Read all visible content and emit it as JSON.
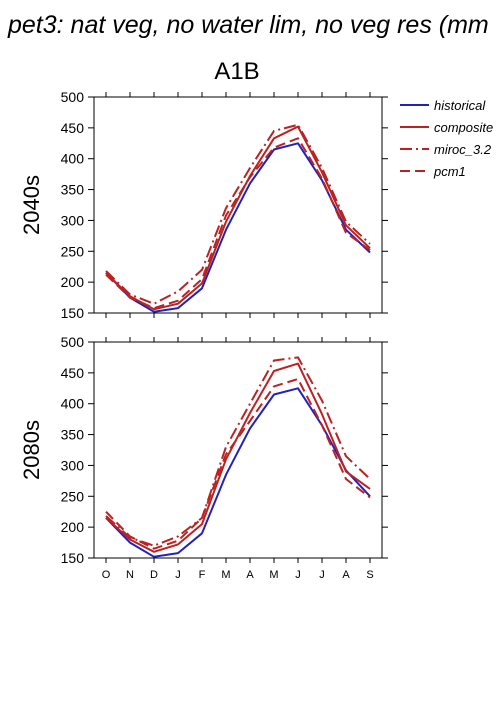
{
  "title": "pet3: nat veg, no water lim, no veg res (mm",
  "scenario": "A1B",
  "colors": {
    "historical": "#2222bb",
    "future": "#bb2222"
  },
  "legend": [
    {
      "name": "historical",
      "color": "#2222bb",
      "dash": "solid"
    },
    {
      "name": "composite",
      "color": "#bb2222",
      "dash": "solid"
    },
    {
      "name": "miroc_3.2",
      "color": "#bb2222",
      "dash": "dashdot"
    },
    {
      "name": "pcm1",
      "color": "#bb2222",
      "dash": "dashed"
    }
  ],
  "chart_data": [
    {
      "type": "line",
      "row_label": "2040s",
      "categories": [
        "O",
        "N",
        "D",
        "J",
        "F",
        "M",
        "A",
        "M",
        "J",
        "J",
        "A",
        "S"
      ],
      "ylim": [
        150,
        500
      ],
      "yticks": [
        150,
        200,
        250,
        300,
        350,
        400,
        450,
        500
      ],
      "series": [
        {
          "name": "historical",
          "values": [
            215,
            175,
            152,
            158,
            190,
            285,
            360,
            415,
            425,
            365,
            285,
            248
          ]
        },
        {
          "name": "composite",
          "values": [
            215,
            177,
            156,
            165,
            198,
            298,
            372,
            433,
            452,
            378,
            292,
            255
          ]
        },
        {
          "name": "miroc_3.2",
          "values": [
            218,
            180,
            165,
            185,
            220,
            320,
            385,
            445,
            455,
            385,
            298,
            262
          ]
        },
        {
          "name": "pcm1",
          "values": [
            212,
            175,
            158,
            170,
            205,
            308,
            370,
            418,
            433,
            368,
            280,
            252
          ]
        }
      ]
    },
    {
      "type": "line",
      "row_label": "2080s",
      "categories": [
        "O",
        "N",
        "D",
        "J",
        "F",
        "M",
        "A",
        "M",
        "J",
        "J",
        "A",
        "S"
      ],
      "ylim": [
        150,
        500
      ],
      "yticks": [
        150,
        200,
        250,
        300,
        350,
        400,
        450,
        500
      ],
      "series": [
        {
          "name": "historical",
          "values": [
            215,
            175,
            152,
            158,
            190,
            285,
            360,
            415,
            425,
            365,
            292,
            250
          ]
        },
        {
          "name": "composite",
          "values": [
            215,
            180,
            160,
            172,
            205,
            310,
            385,
            453,
            465,
            383,
            290,
            262
          ]
        },
        {
          "name": "miroc_3.2",
          "values": [
            218,
            183,
            170,
            185,
            215,
            330,
            400,
            470,
            475,
            405,
            315,
            278
          ]
        },
        {
          "name": "pcm1",
          "values": [
            225,
            185,
            165,
            178,
            215,
            318,
            372,
            428,
            440,
            365,
            278,
            248
          ]
        }
      ]
    }
  ]
}
